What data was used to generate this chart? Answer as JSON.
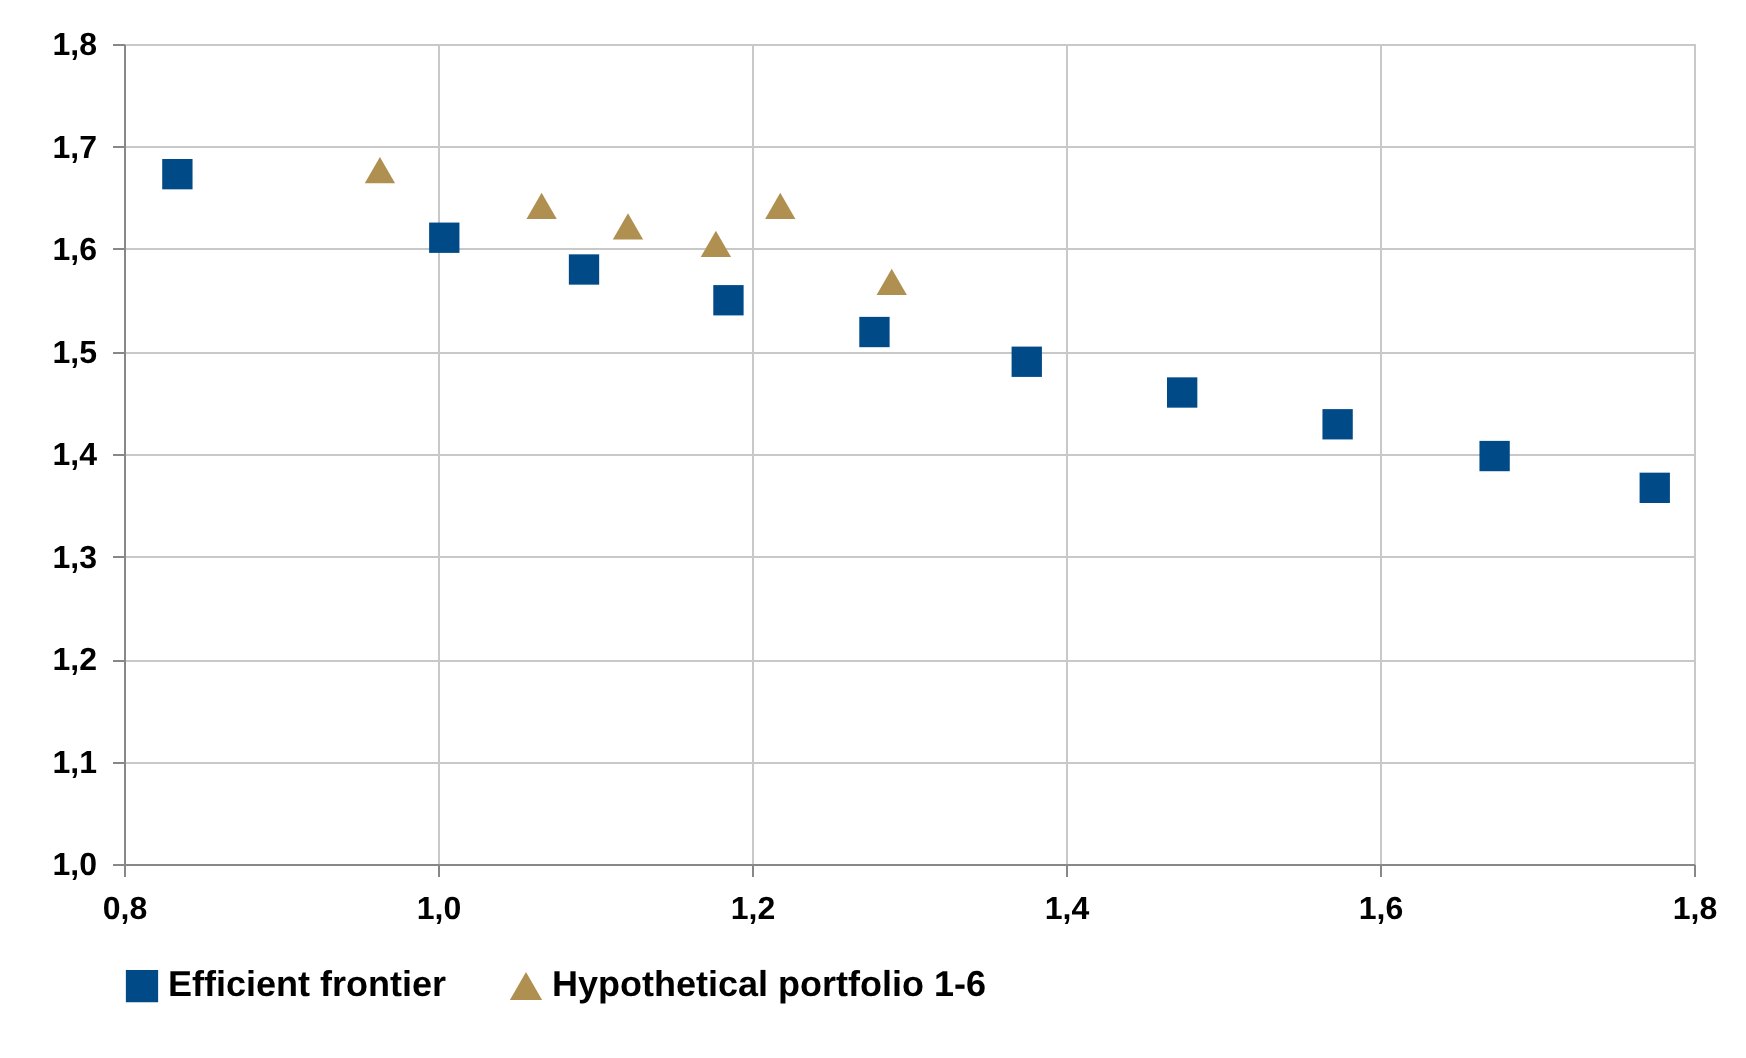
{
  "chart_data": {
    "type": "scatter",
    "legend": "bottom",
    "grid": true,
    "xlim": [
      0.8,
      1.8
    ],
    "xticks": [
      {
        "value": 0.8,
        "label": "0,8"
      },
      {
        "value": 1.0,
        "label": "1,0"
      },
      {
        "value": 1.2,
        "label": "1,2"
      },
      {
        "value": 1.4,
        "label": "1,4"
      },
      {
        "value": 1.6,
        "label": "1,6"
      },
      {
        "value": 1.8,
        "label": "1,8"
      }
    ],
    "ylim": [
      1.0,
      1.8
    ],
    "yticks": [
      {
        "value": 1.0,
        "label": "1,0"
      },
      {
        "value": 1.1,
        "label": "1,1"
      },
      {
        "value": 1.2,
        "label": "1,2"
      },
      {
        "value": 1.3,
        "label": "1,3"
      },
      {
        "value": 1.4,
        "label": "1,4"
      },
      {
        "value": 1.5,
        "label": "1,5"
      },
      {
        "value": 1.6,
        "label": "1,6"
      },
      {
        "value": 1.7,
        "label": "1,7"
      },
      {
        "value": 1.8,
        "label": "1,8"
      }
    ],
    "series": [
      {
        "name": "Efficient frontier",
        "color": "#004b87",
        "marker": "square",
        "x": [
          0.834,
          1.004,
          1.093,
          1.185,
          1.278,
          1.375,
          1.474,
          1.573,
          1.673,
          1.775
        ],
        "values": [
          1.673,
          1.611,
          1.58,
          1.55,
          1.519,
          1.49,
          1.46,
          1.429,
          1.398,
          1.367
        ]
      },
      {
        "name": "Hypothetical portfolio 1-6",
        "color": "#b09050",
        "marker": "triangle",
        "x": [
          0.963,
          1.066,
          1.121,
          1.177,
          1.218,
          1.289
        ],
        "values": [
          1.677,
          1.642,
          1.622,
          1.605,
          1.642,
          1.568
        ]
      }
    ]
  }
}
